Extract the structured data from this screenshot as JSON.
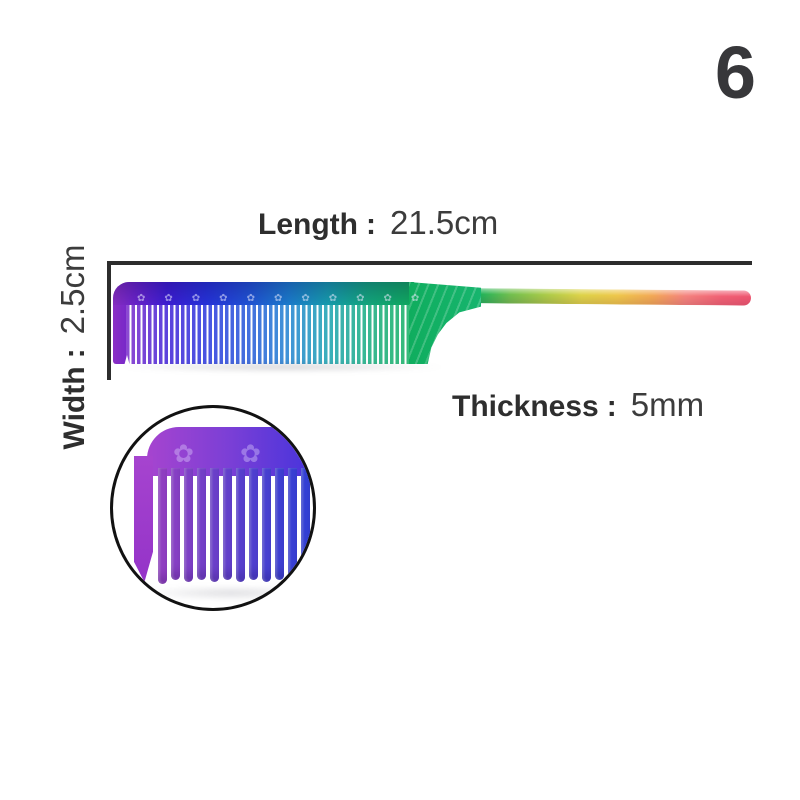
{
  "figure": {
    "index": "6"
  },
  "dimensions": {
    "length": {
      "label": "Length",
      "colon": ":",
      "value": "21.5cm"
    },
    "width": {
      "label": "Width",
      "colon": ":",
      "value": "2.5cm"
    },
    "thickness": {
      "label": "Thickness",
      "colon": ":",
      "value": "5mm"
    }
  },
  "comb": {
    "ornament_glyph": "✿",
    "colors": {
      "body_gradient": [
        "#8a2fc4",
        "#3d1ed6",
        "#2634dd",
        "#2055d8",
        "#1b7fd0",
        "#16a0b0",
        "#0fae5c"
      ],
      "tail_gradient": [
        "#12af60",
        "#6fbf4e",
        "#ddd348",
        "#eec74a",
        "#f2a855",
        "#f4827d",
        "#ee5570"
      ],
      "inset_gradient": [
        "#a644cf",
        "#4533dc",
        "#2746e2"
      ],
      "dimension_line": "#2d2d2d",
      "text": "#333333"
    }
  }
}
